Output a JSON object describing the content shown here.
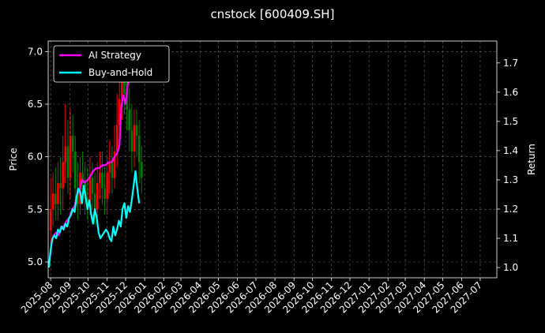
{
  "chart_data": {
    "type": "line",
    "title": "cnstock [600409.SH]",
    "xlabel": "",
    "ylabel": "Price",
    "ylabel_right": "Return",
    "x_tick_labels": [
      "2025-08",
      "2025-09",
      "2025-10",
      "2025-11",
      "2025-12",
      "2026-01",
      "2026-02",
      "2026-03",
      "2026-04",
      "2026-05",
      "2026-06",
      "2026-07",
      "2026-08",
      "2026-09",
      "2026-10",
      "2026-11",
      "2026-12",
      "2027-01",
      "2027-02",
      "2027-03",
      "2027-04",
      "2027-05",
      "2027-06",
      "2027-07"
    ],
    "xlim": [
      "2025-07-28",
      "2027-07-28"
    ],
    "ylim_left": [
      4.85,
      7.1
    ],
    "ylim_right": [
      0.965,
      1.775
    ],
    "y_ticks_left": [
      "5.0",
      "5.5",
      "6.0",
      "6.5",
      "7.0"
    ],
    "y_ticks_right": [
      "1.0",
      "1.1",
      "1.2",
      "1.3",
      "1.4",
      "1.5",
      "1.6",
      "1.7"
    ],
    "grid": true,
    "legend_position": "top-left",
    "candles": {
      "up_color": "#ff0000",
      "down_color": "#008000",
      "dates": [
        "2025-08-01",
        "2025-08-05",
        "2025-08-09",
        "2025-08-13",
        "2025-08-17",
        "2025-08-21",
        "2025-08-25",
        "2025-08-29",
        "2025-09-02",
        "2025-09-06",
        "2025-09-10",
        "2025-09-14",
        "2025-09-18",
        "2025-09-22",
        "2025-09-26",
        "2025-09-30",
        "2025-10-04",
        "2025-10-08",
        "2025-10-12",
        "2025-10-16",
        "2025-10-20",
        "2025-10-24",
        "2025-10-28",
        "2025-11-01",
        "2025-11-05",
        "2025-11-09",
        "2025-11-13",
        "2025-11-17",
        "2025-11-21",
        "2025-11-25",
        "2025-11-29",
        "2025-12-03",
        "2025-12-07",
        "2025-12-11",
        "2025-12-15",
        "2025-12-19",
        "2025-12-23",
        "2025-12-27"
      ],
      "open": [
        5.3,
        5.5,
        5.65,
        5.55,
        5.75,
        5.7,
        5.95,
        6.1,
        5.8,
        6.2,
        6.05,
        5.7,
        5.55,
        5.85,
        5.75,
        5.6,
        5.55,
        5.8,
        5.65,
        5.5,
        5.75,
        5.85,
        5.7,
        5.6,
        5.85,
        5.95,
        5.8,
        6.05,
        6.3,
        6.55,
        6.85,
        6.6,
        6.45,
        6.25,
        6.05,
        6.3,
        6.2,
        5.95
      ],
      "close": [
        5.5,
        5.65,
        5.55,
        5.75,
        5.7,
        5.95,
        6.1,
        5.8,
        6.2,
        6.05,
        5.7,
        5.55,
        5.85,
        5.75,
        5.6,
        5.55,
        5.8,
        5.65,
        5.5,
        5.75,
        5.85,
        5.7,
        5.6,
        5.85,
        5.95,
        5.8,
        6.05,
        6.3,
        6.55,
        6.85,
        6.6,
        6.45,
        6.25,
        6.05,
        6.3,
        6.2,
        5.95,
        5.8
      ],
      "high": [
        5.8,
        5.85,
        5.9,
        5.95,
        6.0,
        6.2,
        6.5,
        6.35,
        6.45,
        6.4,
        6.2,
        5.95,
        6.0,
        6.05,
        5.95,
        5.9,
        6.0,
        5.95,
        5.85,
        5.95,
        6.05,
        6.05,
        5.9,
        6.0,
        6.15,
        6.1,
        6.3,
        6.6,
        6.9,
        7.0,
        6.95,
        6.8,
        6.65,
        6.5,
        6.45,
        6.45,
        6.35,
        6.1
      ],
      "low": [
        5.15,
        5.35,
        5.4,
        5.4,
        5.45,
        5.5,
        5.75,
        5.65,
        5.6,
        5.85,
        5.55,
        5.4,
        5.45,
        5.55,
        5.45,
        5.4,
        5.45,
        5.5,
        5.35,
        5.4,
        5.6,
        5.55,
        5.45,
        5.45,
        5.65,
        5.65,
        5.7,
        5.9,
        6.15,
        6.35,
        6.4,
        6.25,
        6.05,
        5.85,
        5.9,
        6.0,
        5.75,
        5.65
      ]
    },
    "series": [
      {
        "name": "AI Strategy",
        "color": "#ff00ff",
        "x": [
          "2025-07-29",
          "2025-08-03",
          "2025-08-06",
          "2025-08-10",
          "2025-08-14",
          "2025-08-18",
          "2025-08-22",
          "2025-08-27",
          "2025-09-01",
          "2025-09-05",
          "2025-09-09",
          "2025-09-13",
          "2025-09-17",
          "2025-09-21",
          "2025-09-25",
          "2025-09-30",
          "2025-10-04",
          "2025-10-09",
          "2025-10-14",
          "2025-10-19",
          "2025-10-24",
          "2025-10-29",
          "2025-11-03",
          "2025-11-08",
          "2025-11-13",
          "2025-11-17",
          "2025-11-21",
          "2025-11-24",
          "2025-11-27",
          "2025-12-01",
          "2025-12-04",
          "2025-12-07",
          "2025-12-10"
        ],
        "y": [
          1.0,
          1.09,
          1.11,
          1.12,
          1.11,
          1.14,
          1.14,
          1.16,
          1.17,
          1.2,
          1.21,
          1.25,
          1.26,
          1.3,
          1.29,
          1.3,
          1.31,
          1.33,
          1.34,
          1.34,
          1.35,
          1.35,
          1.36,
          1.36,
          1.38,
          1.39,
          1.42,
          1.55,
          1.59,
          1.56,
          1.62,
          1.65,
          1.68
        ]
      },
      {
        "name": "Buy-and-Hold",
        "color": "#00ffff",
        "x": [
          "2025-07-29",
          "2025-08-01",
          "2025-08-04",
          "2025-08-07",
          "2025-08-10",
          "2025-08-13",
          "2025-08-16",
          "2025-08-19",
          "2025-08-22",
          "2025-08-25",
          "2025-08-28",
          "2025-08-31",
          "2025-09-03",
          "2025-09-06",
          "2025-09-09",
          "2025-09-12",
          "2025-09-15",
          "2025-09-18",
          "2025-09-21",
          "2025-09-24",
          "2025-09-27",
          "2025-09-30",
          "2025-10-03",
          "2025-10-06",
          "2025-10-09",
          "2025-10-12",
          "2025-10-15",
          "2025-10-18",
          "2025-10-21",
          "2025-10-24",
          "2025-10-27",
          "2025-10-30",
          "2025-11-02",
          "2025-11-05",
          "2025-11-08",
          "2025-11-11",
          "2025-11-14",
          "2025-11-17",
          "2025-11-20",
          "2025-11-23",
          "2025-11-26",
          "2025-11-29",
          "2025-12-02",
          "2025-12-05",
          "2025-12-08",
          "2025-12-11",
          "2025-12-14",
          "2025-12-17",
          "2025-12-20",
          "2025-12-23"
        ],
        "y": [
          1.0,
          1.06,
          1.1,
          1.11,
          1.1,
          1.13,
          1.12,
          1.14,
          1.13,
          1.15,
          1.14,
          1.17,
          1.18,
          1.2,
          1.19,
          1.24,
          1.27,
          1.26,
          1.22,
          1.28,
          1.24,
          1.2,
          1.23,
          1.18,
          1.15,
          1.2,
          1.17,
          1.12,
          1.1,
          1.11,
          1.12,
          1.13,
          1.12,
          1.1,
          1.09,
          1.14,
          1.11,
          1.13,
          1.16,
          1.14,
          1.2,
          1.22,
          1.17,
          1.21,
          1.19,
          1.23,
          1.28,
          1.33,
          1.27,
          1.22
        ]
      }
    ]
  }
}
